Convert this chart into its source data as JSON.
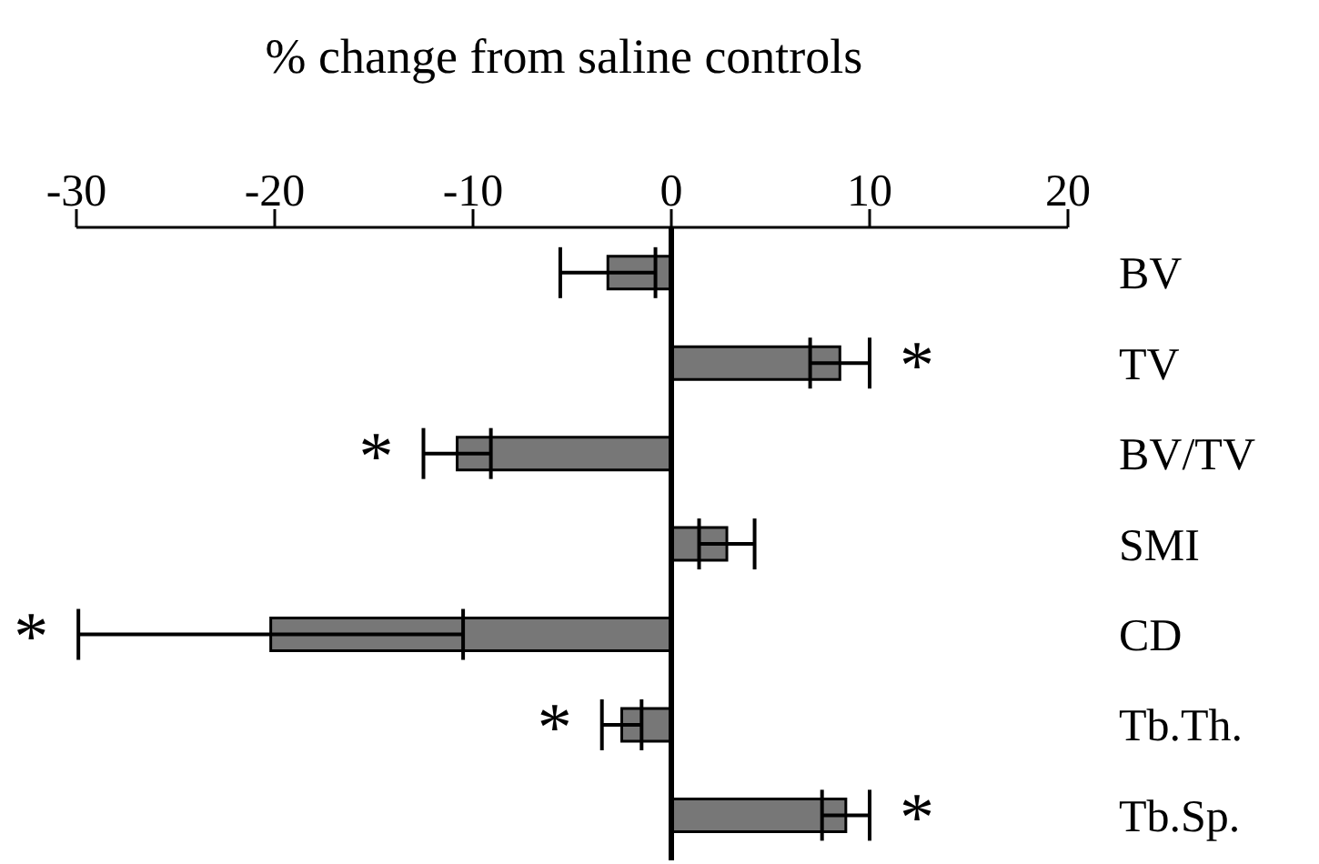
{
  "chart_data": {
    "type": "bar",
    "orientation": "horizontal",
    "xlabel": "% change from saline controls",
    "categories": [
      "BV",
      "TV",
      "BV/TV",
      "SMI",
      "CD",
      "Tb.Th.",
      "Tb.Sp."
    ],
    "values": [
      -3.2,
      8.5,
      -10.8,
      2.8,
      -20.2,
      -2.5,
      8.8
    ],
    "errors": [
      2.4,
      1.5,
      1.7,
      1.4,
      9.7,
      1.0,
      1.2
    ],
    "color": "#777777",
    "xlim": [
      -30,
      20
    ],
    "xticks": [
      -30,
      -20,
      -10,
      0,
      10,
      20
    ],
    "ref_lines": [
      {
        "axis": "x",
        "value": 0,
        "color": "#000000"
      }
    ],
    "annotations": [
      {
        "text": "*",
        "x": 10.0,
        "y": "TV"
      },
      {
        "text": "*",
        "x": -12.5,
        "y": "BV/TV"
      },
      {
        "text": "*",
        "x": -29.9,
        "y": "CD"
      },
      {
        "text": "*",
        "x": -3.5,
        "y": "Tb.Th."
      },
      {
        "text": "*",
        "x": 10.0,
        "y": "Tb.Sp."
      }
    ]
  }
}
